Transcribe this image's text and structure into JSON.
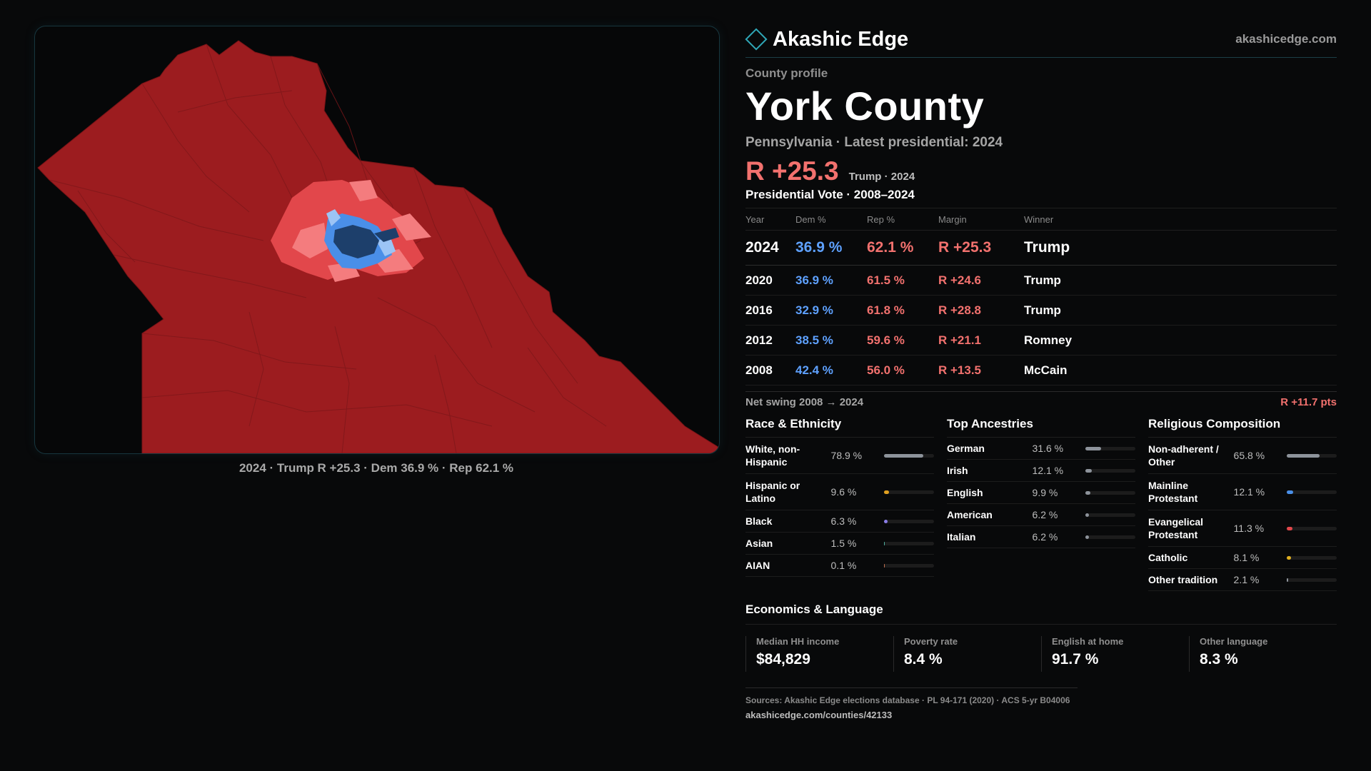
{
  "brand": {
    "name": "Akashic Edge",
    "url": "akashicedge.com"
  },
  "profile": {
    "eyebrow": "County profile",
    "title": "York County",
    "subtitle": "Pennsylvania · Latest presidential: 2024",
    "margin": "R +25.3",
    "margin_note": "Trump · 2024"
  },
  "map": {
    "caption": "2024 · Trump R +25.3 · Dem 36.9 % · Rep 62.1 %",
    "colors": {
      "strong_rep": "#9c1c1f",
      "lean_rep": "#e2474b",
      "tilt_rep": "#f47c7e",
      "lean_dem": "#4a8fe8",
      "strong_dem": "#1d3f6b",
      "tilt_dem": "#9cc4f5"
    }
  },
  "votes": {
    "title": "Presidential Vote · 2008–2024",
    "headers": {
      "year": "Year",
      "dem": "Dem %",
      "rep": "Rep %",
      "margin": "Margin",
      "winner": "Winner"
    },
    "rows": [
      {
        "year": "2024",
        "dem": "36.9 %",
        "rep": "62.1 %",
        "margin": "R +25.3",
        "winner": "Trump"
      },
      {
        "year": "2020",
        "dem": "36.9 %",
        "rep": "61.5 %",
        "margin": "R +24.6",
        "winner": "Trump"
      },
      {
        "year": "2016",
        "dem": "32.9 %",
        "rep": "61.8 %",
        "margin": "R +28.8",
        "winner": "Trump"
      },
      {
        "year": "2012",
        "dem": "38.5 %",
        "rep": "59.6 %",
        "margin": "R +21.1",
        "winner": "Romney"
      },
      {
        "year": "2008",
        "dem": "42.4 %",
        "rep": "56.0 %",
        "margin": "R +13.5",
        "winner": "McCain"
      }
    ],
    "swing_label": "Net swing 2008 → 2024",
    "swing_value": "R +11.7 pts"
  },
  "race": {
    "title": "Race & Ethnicity",
    "rows": [
      {
        "label": "White, non-Hispanic",
        "value": "78.9 %",
        "pct": 78.9,
        "color": "#8d939b"
      },
      {
        "label": "Hispanic or Latino",
        "value": "9.6 %",
        "pct": 9.6,
        "color": "#e0a020"
      },
      {
        "label": "Black",
        "value": "6.3 %",
        "pct": 6.3,
        "color": "#8a7de8"
      },
      {
        "label": "Asian",
        "value": "1.5 %",
        "pct": 1.5,
        "color": "#4fb0a0"
      },
      {
        "label": "AIAN",
        "value": "0.1 %",
        "pct": 0.1,
        "color": "#c07050"
      }
    ]
  },
  "ancestry": {
    "title": "Top Ancestries",
    "rows": [
      {
        "label": "German",
        "value": "31.6 %",
        "pct": 31.6,
        "color": "#8d939b"
      },
      {
        "label": "Irish",
        "value": "12.1 %",
        "pct": 12.1,
        "color": "#8d939b"
      },
      {
        "label": "English",
        "value": "9.9 %",
        "pct": 9.9,
        "color": "#8d939b"
      },
      {
        "label": "American",
        "value": "6.2 %",
        "pct": 6.2,
        "color": "#8d939b"
      },
      {
        "label": "Italian",
        "value": "6.2 %",
        "pct": 6.2,
        "color": "#8d939b"
      }
    ]
  },
  "religion": {
    "title": "Religious Composition",
    "rows": [
      {
        "label": "Non-adherent / Other",
        "value": "65.8 %",
        "pct": 65.8,
        "color": "#8d939b"
      },
      {
        "label": "Mainline Protestant",
        "value": "12.1 %",
        "pct": 12.1,
        "color": "#4a8fe8"
      },
      {
        "label": "Evangelical Protestant",
        "value": "11.3 %",
        "pct": 11.3,
        "color": "#e2474b"
      },
      {
        "label": "Catholic",
        "value": "8.1 %",
        "pct": 8.1,
        "color": "#e0b020"
      },
      {
        "label": "Other tradition",
        "value": "2.1 %",
        "pct": 2.1,
        "color": "#8d939b"
      }
    ]
  },
  "economics": {
    "title": "Economics & Language",
    "cards": [
      {
        "label": "Median HH income",
        "value": "$84,829"
      },
      {
        "label": "Poverty rate",
        "value": "8.4 %"
      },
      {
        "label": "English at home",
        "value": "91.7 %"
      },
      {
        "label": "Other language",
        "value": "8.3 %"
      }
    ]
  },
  "sources": {
    "text": "Sources: Akashic Edge elections database · PL 94-171 (2020) · ACS 5-yr B04006",
    "url": "akashicedge.com/counties/42133"
  }
}
